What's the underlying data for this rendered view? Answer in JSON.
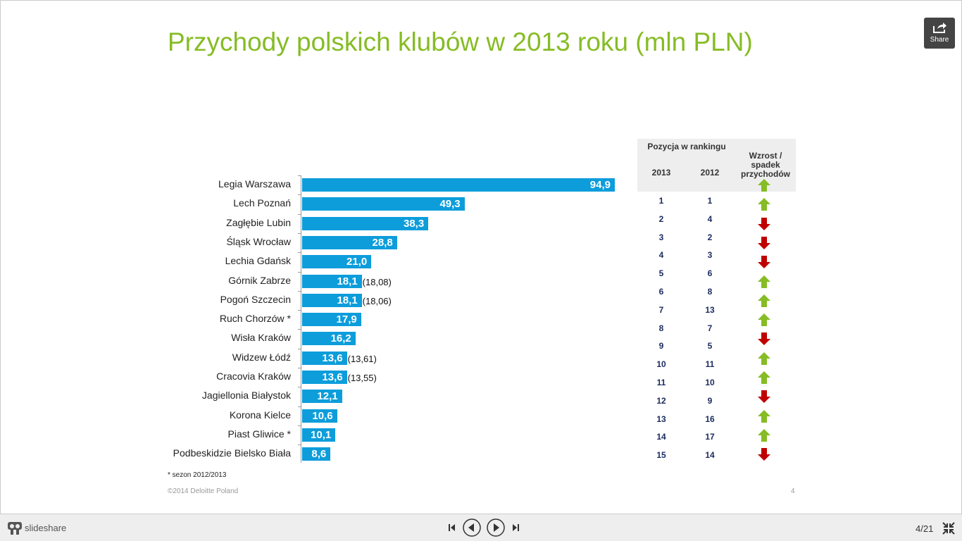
{
  "title": "Przychody polskich klubów w 2013 roku (mln PLN)",
  "share_label": "Share",
  "chart_data": {
    "type": "bar",
    "title": "Przychody polskich klubów w 2013 roku (mln PLN)",
    "categories": [
      "Legia Warszawa",
      "Lech Poznań",
      "Zagłębie Lubin",
      "Śląsk Wrocław",
      "Lechia Gdańsk",
      "Górnik Zabrze",
      "Pogoń Szczecin",
      "Ruch Chorzów *",
      "Wisła Kraków",
      "Widzew Łódź",
      "Cracovia Kraków",
      "Jagiellonia Białystok",
      "Korona Kielce",
      "Piast Gliwice *",
      "Podbeskidzie Bielsko Biała"
    ],
    "values": [
      94.9,
      49.3,
      38.3,
      28.8,
      21.0,
      18.1,
      18.1,
      17.9,
      16.2,
      13.6,
      13.6,
      12.1,
      10.6,
      10.1,
      8.6
    ],
    "value_labels": [
      "94,9",
      "49,3",
      "38,3",
      "28,8",
      "21,0",
      "18,1",
      "18,1",
      "17,9",
      "16,2",
      "13,6",
      "13,6",
      "12,1",
      "10,6",
      "10,1",
      "8,6"
    ],
    "annotations": [
      "",
      "",
      "",
      "",
      "",
      "(18,08)",
      "(18,06)",
      "",
      "",
      "(13,61)",
      "(13,55)",
      "",
      "",
      "",
      ""
    ],
    "xlim": [
      0,
      100
    ]
  },
  "table": {
    "header": "Pozycja w rankingu",
    "col_2013": "2013",
    "col_2012": "2012",
    "col_change": "Wzrost / spadek przychodów",
    "rank_2013": [
      "1",
      "2",
      "3",
      "4",
      "5",
      "6",
      "7",
      "8",
      "9",
      "10",
      "11",
      "12",
      "13",
      "14",
      "15"
    ],
    "rank_2012": [
      "1",
      "4",
      "2",
      "3",
      "6",
      "8",
      "13",
      "7",
      "5",
      "11",
      "10",
      "9",
      "16",
      "17",
      "14"
    ],
    "arrows": [
      "up",
      "up",
      "down",
      "down",
      "down",
      "up",
      "up",
      "up",
      "down",
      "up",
      "up",
      "down",
      "up",
      "up",
      "down"
    ],
    "colors": {
      "up": "#86bc25",
      "down": "#c00000"
    }
  },
  "footnote": "* sezon 2012/2013",
  "copyright": "©2014 Deloitte Poland",
  "slide_number": "4",
  "player": {
    "brand": "slideshare",
    "page": "4/21"
  }
}
